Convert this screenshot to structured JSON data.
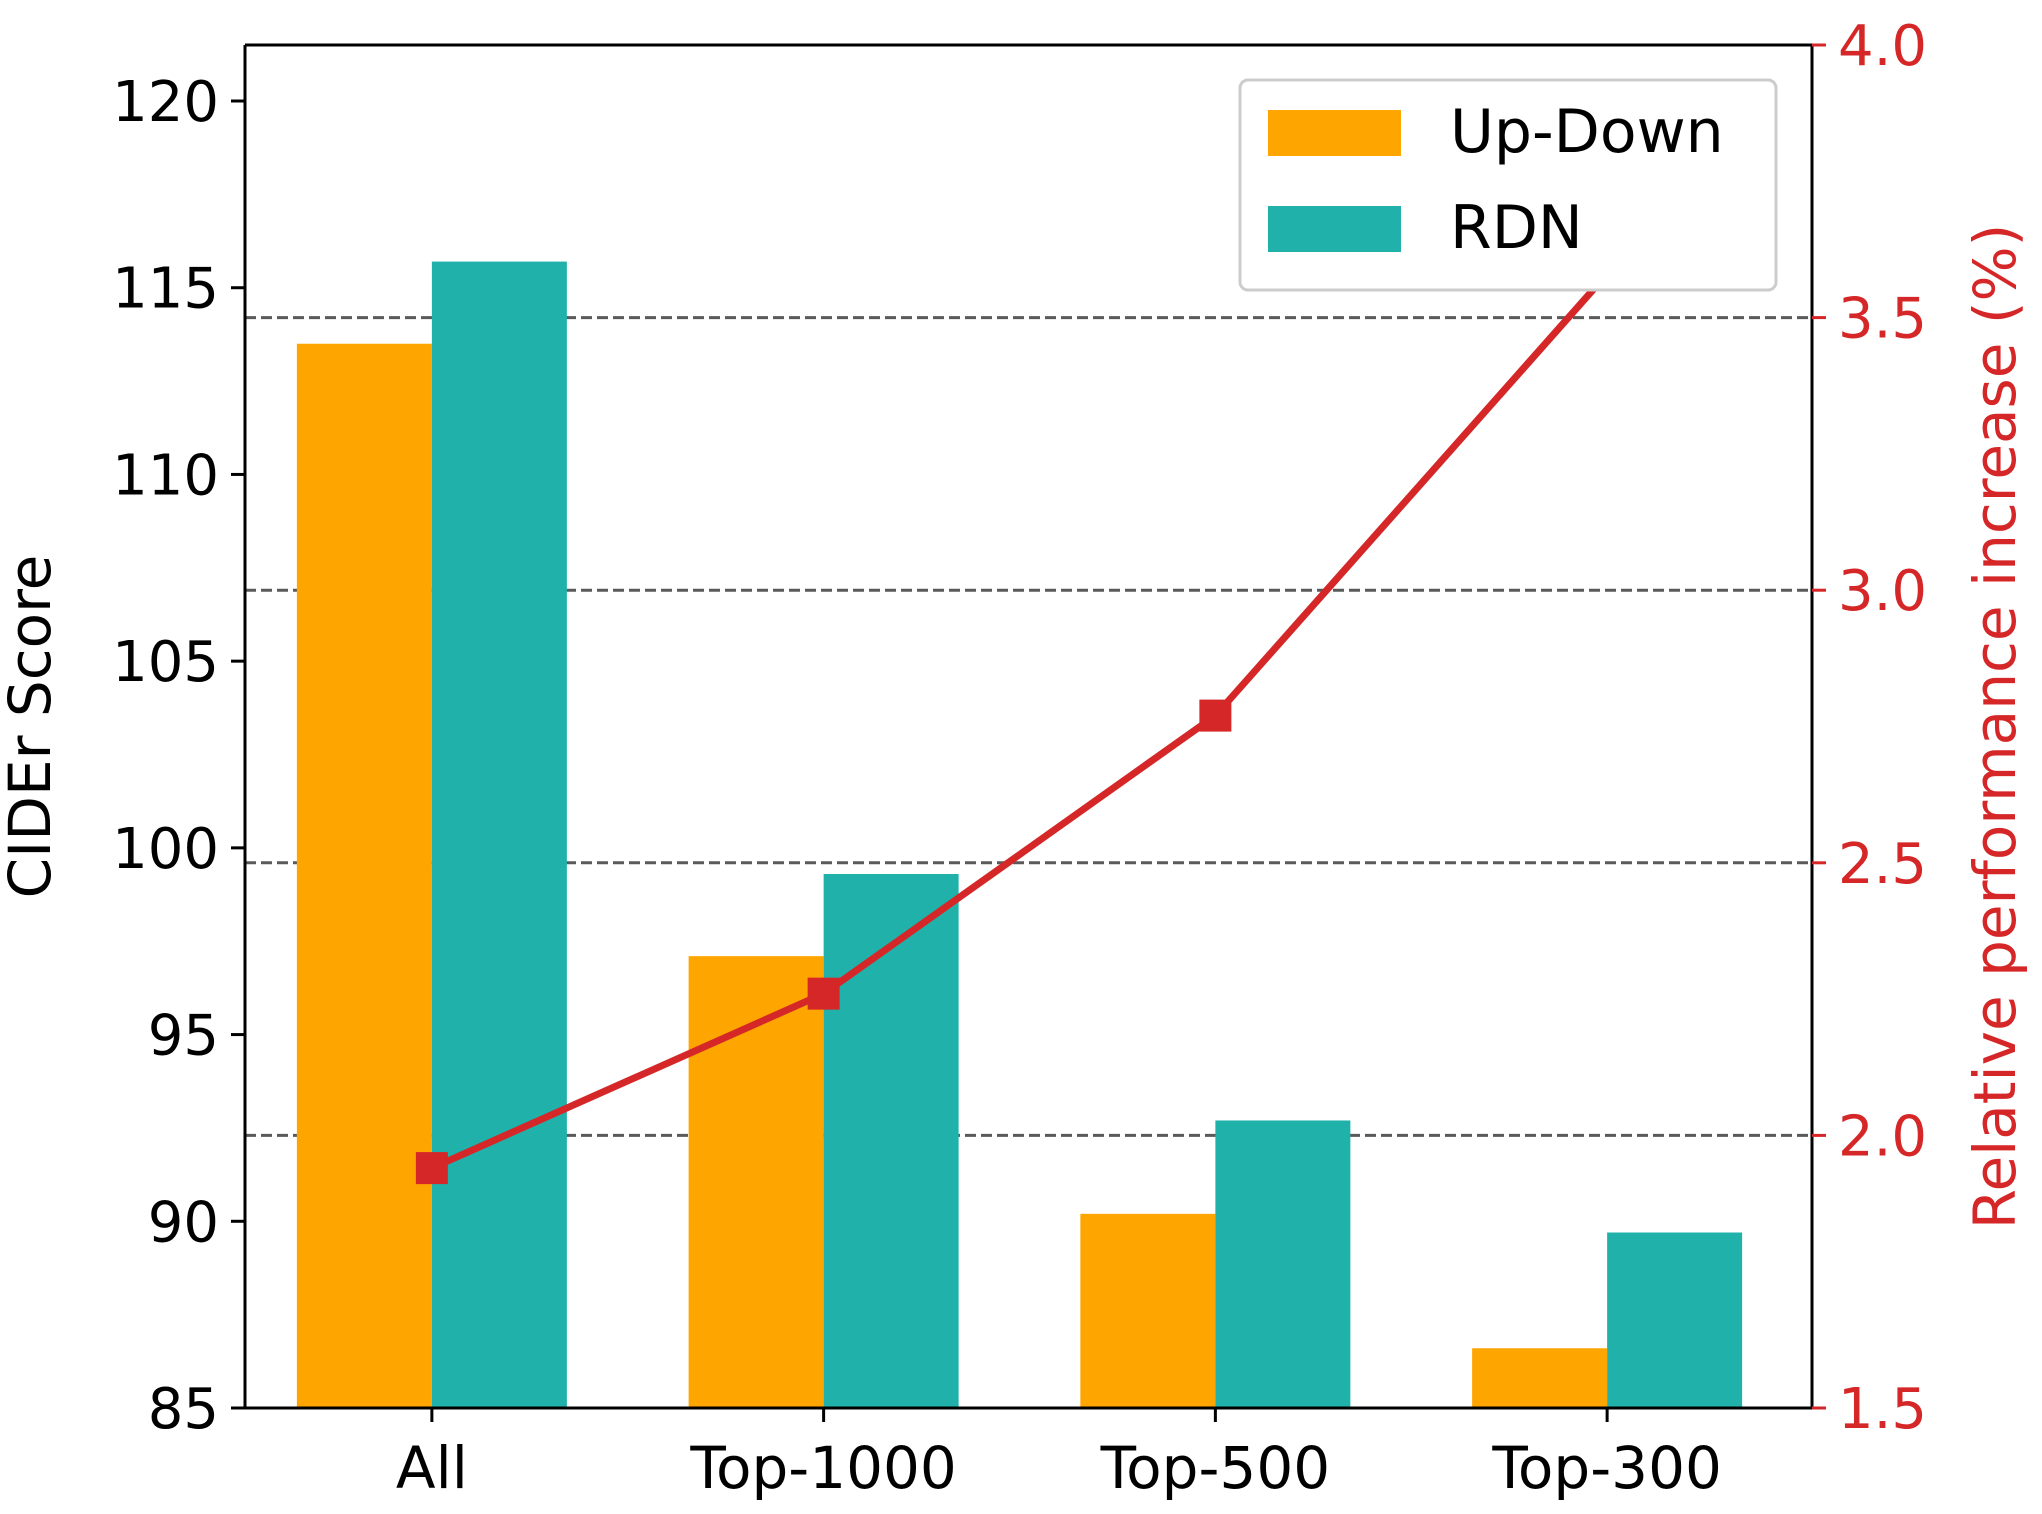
{
  "chart_data": {
    "type": "bar",
    "categories": [
      "All",
      "Top-1000",
      "Top-500",
      "Top-300"
    ],
    "series": [
      {
        "name": "Up-Down",
        "axis": "left",
        "type": "bar",
        "color": "#FFA500",
        "values": [
          113.5,
          97.1,
          90.2,
          86.6
        ]
      },
      {
        "name": "RDN",
        "axis": "left",
        "type": "bar",
        "color": "#20B2AA",
        "values": [
          115.7,
          99.3,
          92.7,
          89.7
        ]
      },
      {
        "name": "",
        "axis": "right",
        "type": "line",
        "marker": "square",
        "color": "#D62728",
        "values": [
          1.94,
          2.26,
          2.77,
          3.58
        ]
      }
    ],
    "title": "",
    "xlabel": "",
    "ylabel": "CIDEr Score",
    "ylim": [
      85,
      121.5
    ],
    "yticks": [
      "85",
      "90",
      "95",
      "100",
      "105",
      "110",
      "115",
      "120"
    ],
    "y2label": "Relative performance increase (%)",
    "y2lim": [
      1.5,
      4.0
    ],
    "y2ticks": [
      "1.5",
      "2.0",
      "2.5",
      "3.0",
      "3.5",
      "4.0"
    ],
    "y2_color": "#D62728",
    "grid": "horizontal dashed lines at right-axis ticks",
    "legend_position": "top-right"
  }
}
